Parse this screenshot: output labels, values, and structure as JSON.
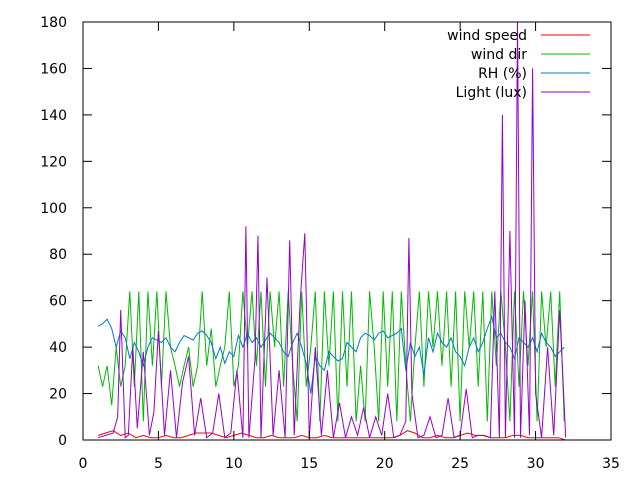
{
  "chart_data": {
    "type": "line",
    "title": "",
    "xlabel": "",
    "ylabel": "",
    "xlim": [
      0,
      35
    ],
    "ylim": [
      0,
      180
    ],
    "grid": false,
    "legend_position": "top-right",
    "x_ticks": [
      0,
      5,
      10,
      15,
      20,
      25,
      30,
      35
    ],
    "y_ticks": [
      0,
      20,
      40,
      60,
      80,
      100,
      120,
      140,
      160,
      180
    ],
    "series": [
      {
        "name": "wind speed",
        "color": "#ff0000",
        "x": [
          1,
          1.5,
          2,
          2.5,
          3,
          3.5,
          4,
          4.5,
          5,
          5.5,
          6,
          6.5,
          7,
          7.5,
          8,
          8.5,
          9,
          9.5,
          10,
          10.5,
          11,
          11.5,
          12,
          12.5,
          13,
          13.5,
          14,
          14.5,
          15,
          15.5,
          16,
          16.5,
          17,
          17.5,
          18,
          18.5,
          19,
          19.5,
          20,
          20.5,
          21,
          21.5,
          22,
          22.5,
          23,
          23.5,
          24,
          24.5,
          25,
          25.5,
          26,
          26.5,
          27,
          27.5,
          28,
          28.5,
          29,
          29.5,
          30,
          30.5,
          31,
          31.5,
          32
        ],
        "values": [
          2,
          3,
          4,
          2,
          3,
          1,
          2,
          1,
          1,
          2,
          1,
          1,
          2,
          3,
          3,
          3,
          2,
          1,
          2,
          3,
          2,
          1,
          1,
          2,
          1,
          1,
          1,
          2,
          1,
          1,
          2,
          1,
          1,
          1,
          1,
          1,
          1,
          1,
          1,
          1,
          2,
          4,
          3,
          1,
          1,
          2,
          1,
          1,
          2,
          3,
          2,
          2,
          1,
          1,
          1,
          2,
          2,
          1,
          1,
          1,
          1,
          1,
          0
        ]
      },
      {
        "name": "wind dir",
        "color": "#00bb00",
        "x": [
          1,
          1.3,
          1.6,
          1.9,
          2.2,
          2.5,
          2.8,
          3.1,
          3.4,
          3.7,
          4,
          4.3,
          4.6,
          4.9,
          5.2,
          5.5,
          5.8,
          6.1,
          6.4,
          6.7,
          7,
          7.3,
          7.6,
          7.9,
          8.2,
          8.5,
          8.8,
          9.1,
          9.4,
          9.7,
          10,
          10.3,
          10.6,
          10.9,
          11.2,
          11.5,
          11.8,
          12.1,
          12.4,
          12.7,
          13,
          13.3,
          13.6,
          13.9,
          14.2,
          14.5,
          14.8,
          15.1,
          15.4,
          15.7,
          16,
          16.3,
          16.6,
          16.9,
          17.2,
          17.5,
          17.8,
          18.1,
          18.4,
          18.7,
          19,
          19.3,
          19.6,
          19.9,
          20.2,
          20.5,
          20.8,
          21.1,
          21.4,
          21.7,
          22,
          22.3,
          22.6,
          22.9,
          23.2,
          23.5,
          23.8,
          24.1,
          24.4,
          24.7,
          25,
          25.3,
          25.6,
          25.9,
          26.2,
          26.5,
          26.8,
          27.1,
          27.4,
          27.7,
          28,
          28.3,
          28.6,
          28.9,
          29.2,
          29.5,
          29.8,
          30.1,
          30.4,
          30.7,
          31,
          31.3,
          31.6,
          31.9
        ],
        "values": [
          32,
          23,
          32,
          15,
          40,
          23,
          32,
          64,
          23,
          64,
          8,
          64,
          32,
          64,
          23,
          64,
          40,
          32,
          23,
          32,
          40,
          23,
          32,
          64,
          32,
          48,
          23,
          32,
          40,
          64,
          23,
          32,
          64,
          40,
          64,
          32,
          64,
          23,
          64,
          40,
          64,
          23,
          64,
          32,
          8,
          64,
          23,
          40,
          64,
          8,
          64,
          32,
          64,
          8,
          64,
          23,
          64,
          8,
          32,
          8,
          64,
          40,
          8,
          64,
          23,
          64,
          8,
          64,
          32,
          8,
          40,
          64,
          23,
          64,
          40,
          64,
          32,
          64,
          23,
          64,
          8,
          64,
          40,
          64,
          23,
          64,
          8,
          64,
          32,
          64,
          40,
          8,
          64,
          23,
          64,
          32,
          64,
          8,
          64,
          40,
          64,
          23,
          64,
          8
        ]
      },
      {
        "name": "RH (%)",
        "color": "#0077cc",
        "x": [
          1,
          1.3,
          1.6,
          1.9,
          2.2,
          2.5,
          2.8,
          3.1,
          3.4,
          3.7,
          4,
          4.3,
          4.6,
          4.9,
          5.2,
          5.5,
          5.8,
          6.1,
          6.4,
          6.7,
          7,
          7.3,
          7.6,
          7.9,
          8.2,
          8.5,
          8.8,
          9.1,
          9.4,
          9.7,
          10,
          10.3,
          10.6,
          10.9,
          11.2,
          11.5,
          11.8,
          12.1,
          12.4,
          12.7,
          13,
          13.3,
          13.6,
          13.9,
          14.2,
          14.5,
          14.8,
          15.1,
          15.4,
          15.7,
          16,
          16.3,
          16.6,
          16.9,
          17.2,
          17.5,
          17.8,
          18.1,
          18.4,
          18.7,
          19,
          19.3,
          19.6,
          19.9,
          20.2,
          20.5,
          20.8,
          21.1,
          21.4,
          21.7,
          22,
          22.3,
          22.6,
          22.9,
          23.2,
          23.5,
          23.8,
          24.1,
          24.4,
          24.7,
          25,
          25.3,
          25.6,
          25.9,
          26.2,
          26.5,
          26.8,
          27.1,
          27.4,
          27.7,
          28,
          28.3,
          28.6,
          28.9,
          29.2,
          29.5,
          29.8,
          30.1,
          30.4,
          30.7,
          31,
          31.3,
          31.6,
          31.9
        ],
        "values": [
          49,
          50,
          52,
          48,
          40,
          47,
          44,
          35,
          42,
          38,
          32,
          40,
          44,
          43,
          42,
          44,
          40,
          38,
          42,
          45,
          44,
          43,
          46,
          47,
          45,
          42,
          35,
          40,
          33,
          38,
          36,
          45,
          40,
          46,
          42,
          44,
          40,
          43,
          46,
          44,
          42,
          38,
          36,
          42,
          46,
          40,
          33,
          20,
          36,
          32,
          30,
          38,
          36,
          34,
          35,
          42,
          40,
          38,
          44,
          46,
          45,
          43,
          46,
          47,
          44,
          45,
          46,
          48,
          30,
          42,
          36,
          40,
          28,
          44,
          38,
          46,
          42,
          40,
          44,
          38,
          36,
          32,
          40,
          44,
          38,
          42,
          48,
          53,
          44,
          46,
          42,
          40,
          35,
          44,
          42,
          40,
          44,
          38,
          46,
          42,
          40,
          36,
          38,
          40
        ]
      },
      {
        "name": "Light (lux)",
        "color": "#9900cc",
        "x": [
          1,
          1.5,
          2,
          2.3,
          2.5,
          2.8,
          3,
          3.3,
          3.6,
          4,
          4.4,
          4.7,
          5,
          5.4,
          5.8,
          6.2,
          6.6,
          7,
          7.4,
          7.8,
          8.2,
          8.6,
          9,
          9.4,
          9.8,
          10.2,
          10.6,
          10.8,
          11,
          11.4,
          11.6,
          11.8,
          12.2,
          12.6,
          13,
          13.4,
          13.7,
          14,
          14.4,
          14.7,
          15,
          15.4,
          15.8,
          16.2,
          16.6,
          17,
          17.4,
          17.8,
          18.2,
          18.6,
          19,
          19.4,
          19.8,
          20.2,
          20.6,
          21,
          21.4,
          21.6,
          21.8,
          22.2,
          22.6,
          23,
          23.4,
          23.8,
          24.2,
          24.6,
          25,
          25.4,
          25.8,
          26.2,
          26.6,
          27,
          27.3,
          27.6,
          27.8,
          28,
          28.3,
          28.6,
          28.8,
          29,
          29.3,
          29.6,
          29.8,
          30,
          30.4,
          30.8,
          31.2,
          31.6,
          32
        ],
        "values": [
          1,
          2,
          3,
          10,
          56,
          1,
          2,
          40,
          5,
          38,
          2,
          12,
          47,
          2,
          30,
          1,
          25,
          36,
          2,
          18,
          1,
          3,
          20,
          1,
          3,
          30,
          1,
          92,
          1,
          35,
          88,
          1,
          70,
          2,
          30,
          1,
          86,
          2,
          60,
          89,
          1,
          40,
          2,
          30,
          1,
          16,
          1,
          10,
          2,
          14,
          1,
          10,
          2,
          20,
          1,
          2,
          8,
          87,
          20,
          1,
          2,
          10,
          1,
          2,
          18,
          1,
          2,
          22,
          1,
          2,
          2,
          1,
          64,
          1,
          140,
          1,
          90,
          1,
          180,
          1,
          60,
          2,
          160,
          20,
          1,
          40,
          2,
          56,
          1
        ]
      }
    ]
  }
}
